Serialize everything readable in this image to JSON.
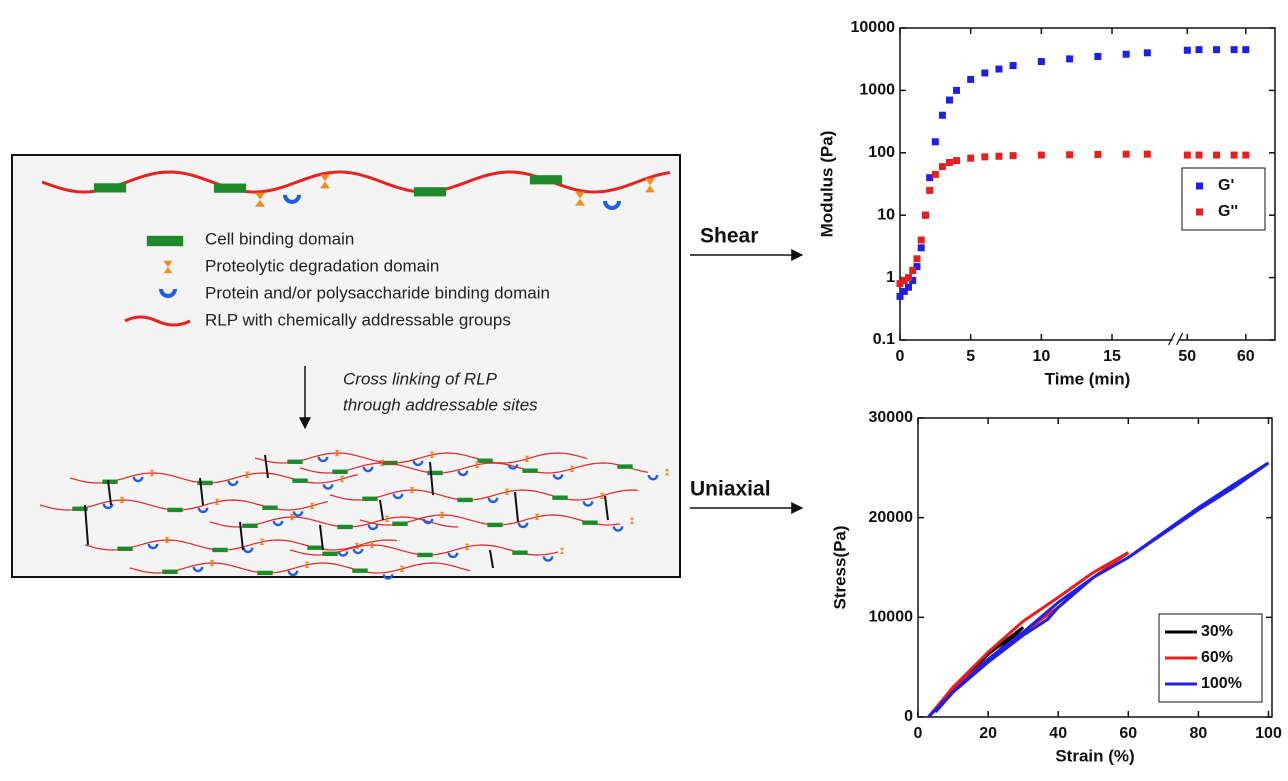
{
  "diagram": {
    "legend": [
      "Cell binding domain",
      "Proteolytic degradation domain",
      "Protein and/or polysaccharide binding domain",
      "RLP with chemically addressable groups"
    ],
    "process_label": [
      "Cross linking of RLP",
      "through addressable sites"
    ],
    "arrows": [
      "Shear",
      "Uniaxial"
    ]
  },
  "chart_data": [
    {
      "type": "scatter",
      "xlabel": "Time (min)",
      "ylabel": "Modulus (Pa)",
      "ylog": true,
      "legend": "center right",
      "xlim": [
        0,
        65
      ],
      "xbreak": [
        19.5,
        48
      ],
      "xticks": [
        0,
        5,
        10,
        15,
        50,
        60
      ],
      "ylim": [
        0.1,
        10000
      ],
      "yticks": [
        0.1,
        1,
        10,
        100,
        1000,
        10000
      ],
      "series": [
        {
          "name": "G'",
          "color": "#1f1fe8",
          "x": [
            0,
            0.3,
            0.6,
            0.9,
            1.2,
            1.5,
            1.8,
            2.1,
            2.5,
            3,
            3.5,
            4,
            5,
            6,
            7,
            8,
            10,
            12,
            14,
            16,
            17.5,
            50,
            52,
            55,
            58,
            60
          ],
          "values": [
            0.5,
            0.6,
            0.7,
            0.9,
            1.5,
            3,
            10,
            40,
            150,
            400,
            700,
            1000,
            1500,
            1900,
            2200,
            2500,
            2900,
            3200,
            3500,
            3800,
            4000,
            4400,
            4500,
            4500,
            4500,
            4500
          ]
        },
        {
          "name": "G''",
          "color": "#e81f1f",
          "x": [
            0,
            0.3,
            0.6,
            0.9,
            1.2,
            1.5,
            1.8,
            2.1,
            2.5,
            3,
            3.5,
            4,
            5,
            6,
            7,
            8,
            10,
            12,
            14,
            16,
            17.5,
            50,
            52,
            55,
            58,
            60
          ],
          "values": [
            0.8,
            0.9,
            1,
            1.3,
            2,
            4,
            10,
            25,
            45,
            60,
            70,
            75,
            82,
            86,
            88,
            90,
            92,
            93,
            94,
            95,
            95,
            92,
            92,
            92,
            92,
            92
          ]
        }
      ]
    },
    {
      "type": "line",
      "xlabel": "Strain (%)",
      "ylabel": "Stress(Pa)",
      "legend": "lower right",
      "xlim": [
        0,
        101
      ],
      "xticks": [
        0,
        20,
        40,
        60,
        80,
        100
      ],
      "ylim": [
        0,
        30000
      ],
      "yticks": [
        0,
        10000,
        20000,
        30000
      ],
      "series": [
        {
          "name": "30%",
          "color": "#000000",
          "x": [
            3,
            10,
            20,
            30,
            20,
            10,
            5
          ],
          "values": [
            0,
            2800,
            6300,
            9000,
            5600,
            2500,
            600
          ]
        },
        {
          "name": "60%",
          "color": "#e81f1f",
          "x": [
            3,
            10,
            20,
            30,
            40,
            50,
            60,
            50,
            40,
            30,
            20,
            10,
            5
          ],
          "values": [
            0,
            3000,
            6500,
            9600,
            12000,
            14500,
            16500,
            14000,
            11000,
            8500,
            5800,
            2800,
            800
          ]
        },
        {
          "name": "100%",
          "color": "#1f1fe8",
          "x": [
            3,
            10,
            20,
            30,
            40,
            50,
            60,
            70,
            80,
            90,
            100,
            90,
            80,
            70,
            60,
            50,
            40,
            37,
            30,
            20,
            10,
            5
          ],
          "values": [
            0,
            2500,
            5800,
            8500,
            11500,
            14000,
            16000,
            18500,
            21000,
            23300,
            25500,
            23000,
            20800,
            18400,
            16000,
            14000,
            11000,
            9800,
            8200,
            5500,
            2500,
            500
          ]
        }
      ]
    }
  ]
}
